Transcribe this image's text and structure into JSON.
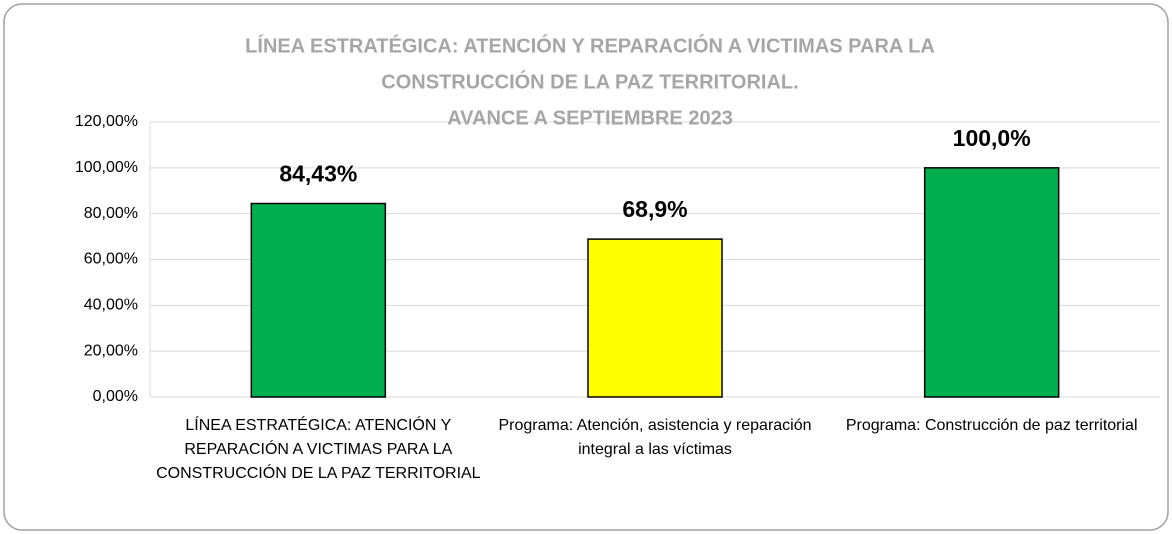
{
  "chart_data": {
    "type": "bar",
    "title": [
      "LÍNEA ESTRATÉGICA: ATENCIÓN Y REPARACIÓN A VICTIMAS PARA LA",
      "CONSTRUCCIÓN DE LA  PAZ TERRITORIAL.",
      "AVANCE A SEPTIEMBRE  2023"
    ],
    "categories": [
      "LÍNEA ESTRATÉGICA: ATENCIÓN Y REPARACIÓN A VICTIMAS PARA LA CONSTRUCCIÓN DE LA  PAZ TERRITORIAL",
      "Programa: Atención, asistencia y reparación integral a las víctimas",
      "Programa: Construcción de paz territorial"
    ],
    "values": [
      84.43,
      68.9,
      100.0
    ],
    "value_labels": [
      "84,43%",
      "68,9%",
      "100,0%"
    ],
    "colors": [
      "#00b050",
      "#ffff00",
      "#00b050"
    ],
    "ylim": [
      0,
      120
    ],
    "yticks": [
      {
        "value": 0,
        "label": "0,00%"
      },
      {
        "value": 20,
        "label": "20,00%"
      },
      {
        "value": 40,
        "label": "40,00%"
      },
      {
        "value": 60,
        "label": "60,00%"
      },
      {
        "value": 80,
        "label": "80,00%"
      },
      {
        "value": 100,
        "label": "100,00%"
      },
      {
        "value": 120,
        "label": "120,00%"
      }
    ],
    "grid": true
  }
}
